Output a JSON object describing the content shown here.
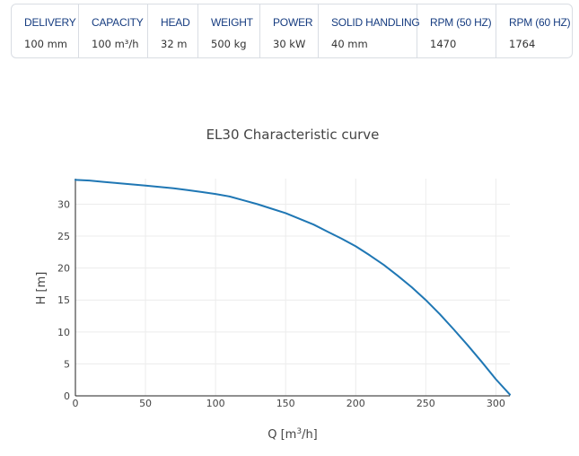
{
  "specs": [
    {
      "label": "DELIVERY",
      "value": "100 mm"
    },
    {
      "label": "CAPACITY",
      "value": "100 m³/h"
    },
    {
      "label": "HEAD",
      "value": "32 m"
    },
    {
      "label": "WEIGHT",
      "value": "500 kg"
    },
    {
      "label": "POWER",
      "value": "30 kW"
    },
    {
      "label": "SOLID HANDLING",
      "value": "40 mm"
    },
    {
      "label": "RPM (50 HZ)",
      "value": "1470"
    },
    {
      "label": "RPM (60 HZ)",
      "value": "1764"
    }
  ],
  "chart_data": {
    "type": "line",
    "title": "EL30 Characteristic curve",
    "xlabel": "Q [m³/h]",
    "ylabel": "H [m]",
    "xlim": [
      0,
      310
    ],
    "ylim": [
      0,
      34
    ],
    "xticks": [
      0,
      50,
      100,
      150,
      200,
      250,
      300
    ],
    "yticks": [
      0,
      5,
      10,
      15,
      20,
      25,
      30
    ],
    "grid": true,
    "series_color": "#1f77b4",
    "series": [
      {
        "x": [
          0,
          10,
          20,
          30,
          40,
          50,
          60,
          70,
          80,
          90,
          100,
          110,
          120,
          130,
          140,
          150,
          160,
          170,
          180,
          190,
          200,
          210,
          220,
          230,
          240,
          250,
          260,
          270,
          280,
          290,
          300,
          310
        ],
        "y": [
          33.8,
          33.7,
          33.5,
          33.3,
          33.1,
          32.9,
          32.7,
          32.5,
          32.2,
          31.9,
          31.6,
          31.2,
          30.6,
          30.0,
          29.3,
          28.6,
          27.7,
          26.8,
          25.7,
          24.6,
          23.4,
          22.0,
          20.5,
          18.8,
          17.0,
          15.0,
          12.8,
          10.4,
          7.9,
          5.3,
          2.6,
          0.2
        ]
      }
    ]
  }
}
